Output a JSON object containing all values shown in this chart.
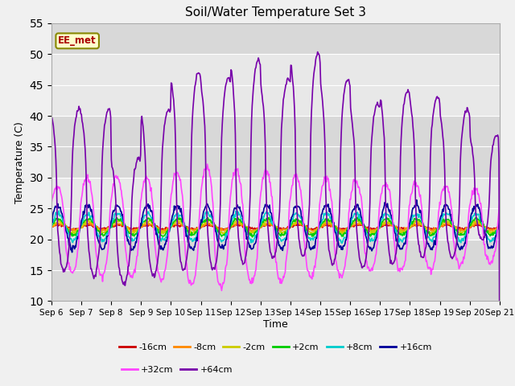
{
  "title": "Soil/Water Temperature Set 3",
  "xlabel": "Time",
  "ylabel": "Temperature (C)",
  "ylim": [
    10,
    55
  ],
  "yticks": [
    10,
    15,
    20,
    25,
    30,
    35,
    40,
    45,
    50,
    55
  ],
  "xtick_labels": [
    "Sep 6",
    "Sep 7",
    "Sep 8",
    "Sep 9",
    "Sep 10",
    "Sep 11",
    "Sep 12",
    "Sep 13",
    "Sep 14",
    "Sep 15",
    "Sep 16",
    "Sep 17",
    "Sep 18",
    "Sep 19",
    "Sep 20",
    "Sep 21"
  ],
  "background_color": "#f0f0f0",
  "plot_bg_color": "#e8e8e8",
  "series": [
    {
      "label": "-16cm",
      "color": "#cc0000",
      "lw": 1.2
    },
    {
      "label": "-8cm",
      "color": "#ff8800",
      "lw": 1.2
    },
    {
      "label": "-2cm",
      "color": "#cccc00",
      "lw": 1.2
    },
    {
      "label": "+2cm",
      "color": "#00cc00",
      "lw": 1.2
    },
    {
      "label": "+8cm",
      "color": "#00cccc",
      "lw": 1.2
    },
    {
      "label": "+16cm",
      "color": "#000099",
      "lw": 1.2
    },
    {
      "label": "+32cm",
      "color": "#ff44ff",
      "lw": 1.2
    },
    {
      "label": "+64cm",
      "color": "#7700aa",
      "lw": 1.2
    }
  ],
  "legend_row1": [
    "-16cm",
    "-8cm",
    "-2cm",
    "+2cm",
    "+8cm",
    "+16cm"
  ],
  "legend_row2": [
    "+32cm",
    "+64cm"
  ],
  "annotation_text": "EE_met",
  "annotation_color": "#aa0000",
  "annotation_bg": "#ffffcc",
  "annotation_border": "#888800",
  "grid_color": "#ffffff",
  "shaded_bands": [
    [
      10,
      20,
      "#d8d8d8"
    ],
    [
      20,
      30,
      "#e8e8e8"
    ],
    [
      30,
      40,
      "#d8d8d8"
    ],
    [
      40,
      50,
      "#e8e8e8"
    ],
    [
      50,
      55,
      "#d8d8d8"
    ]
  ]
}
